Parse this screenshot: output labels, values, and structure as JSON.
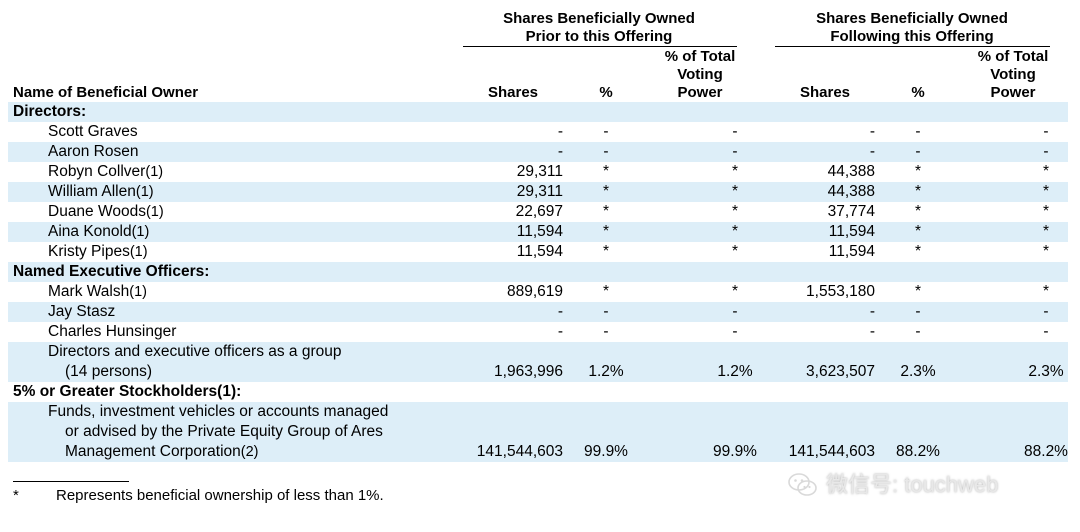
{
  "header": {
    "group_prior": [
      "Shares Beneficially Owned",
      "Prior to this Offering"
    ],
    "group_following": [
      "Shares Beneficially Owned",
      "Following this Offering"
    ],
    "name_col": "Name of Beneficial Owner",
    "shares": "Shares",
    "pct": "%",
    "voting": [
      "% of Total",
      "Voting",
      "Power"
    ]
  },
  "rows": [
    {
      "type": "section",
      "name": "Directors:"
    },
    {
      "type": "data",
      "name": "Scott Graves",
      "note": "",
      "cells": [
        "-",
        "-",
        "-",
        "-",
        "-",
        "-"
      ]
    },
    {
      "type": "data",
      "name": "Aaron Rosen",
      "note": "",
      "cells": [
        "-",
        "-",
        "-",
        "-",
        "-",
        "-"
      ]
    },
    {
      "type": "data",
      "name": "Robyn Collver",
      "note": "(1)",
      "cells": [
        "29,311",
        "*",
        "*",
        "44,388",
        "*",
        "*"
      ]
    },
    {
      "type": "data",
      "name": "William Allen",
      "note": "(1)",
      "cells": [
        "29,311",
        "*",
        "*",
        "44,388",
        "*",
        "*"
      ]
    },
    {
      "type": "data",
      "name": "Duane Woods",
      "note": "(1)",
      "cells": [
        "22,697",
        "*",
        "*",
        "37,774",
        "*",
        "*"
      ]
    },
    {
      "type": "data",
      "name": "Aina Konold",
      "note": "(1)",
      "cells": [
        "11,594",
        "*",
        "*",
        "11,594",
        "*",
        "*"
      ]
    },
    {
      "type": "data",
      "name": "Kristy Pipes",
      "note": "(1)",
      "cells": [
        "11,594",
        "*",
        "*",
        "11,594",
        "*",
        "*"
      ]
    },
    {
      "type": "section",
      "name": "Named Executive Officers:"
    },
    {
      "type": "data",
      "name": "Mark Walsh",
      "note": "(1)",
      "cells": [
        "889,619",
        "*",
        "*",
        "1,553,180",
        "*",
        "*"
      ]
    },
    {
      "type": "data",
      "name": "Jay Stasz",
      "note": "",
      "cells": [
        "-",
        "-",
        "-",
        "-",
        "-",
        "-"
      ]
    },
    {
      "type": "data",
      "name": "Charles Hunsinger",
      "note": "",
      "cells": [
        "-",
        "-",
        "-",
        "-",
        "-",
        "-"
      ]
    },
    {
      "type": "multi",
      "lines": [
        "Directors and executive officers as a group",
        "(14 persons)"
      ],
      "cells": [
        "1,963,996",
        "1.2%",
        "1.2%",
        "3,623,507",
        "2.3%",
        "2.3%"
      ]
    },
    {
      "type": "section",
      "name": "5% or Greater Stockholders(1):"
    },
    {
      "type": "multi",
      "lines": [
        "Funds, investment vehicles or accounts managed",
        "or advised by the Private Equity Group of Ares",
        "Management Corporation"
      ],
      "note": "(2)",
      "cells": [
        "141,544,603",
        "99.9%",
        "99.9%",
        "141,544,603",
        "88.2%",
        "88.2%"
      ]
    }
  ],
  "footnote": {
    "mark": "*",
    "text": "Represents beneficial ownership of less than 1%."
  },
  "watermark": {
    "icon": "wechat-icon",
    "text": "微信号: touchweb"
  }
}
